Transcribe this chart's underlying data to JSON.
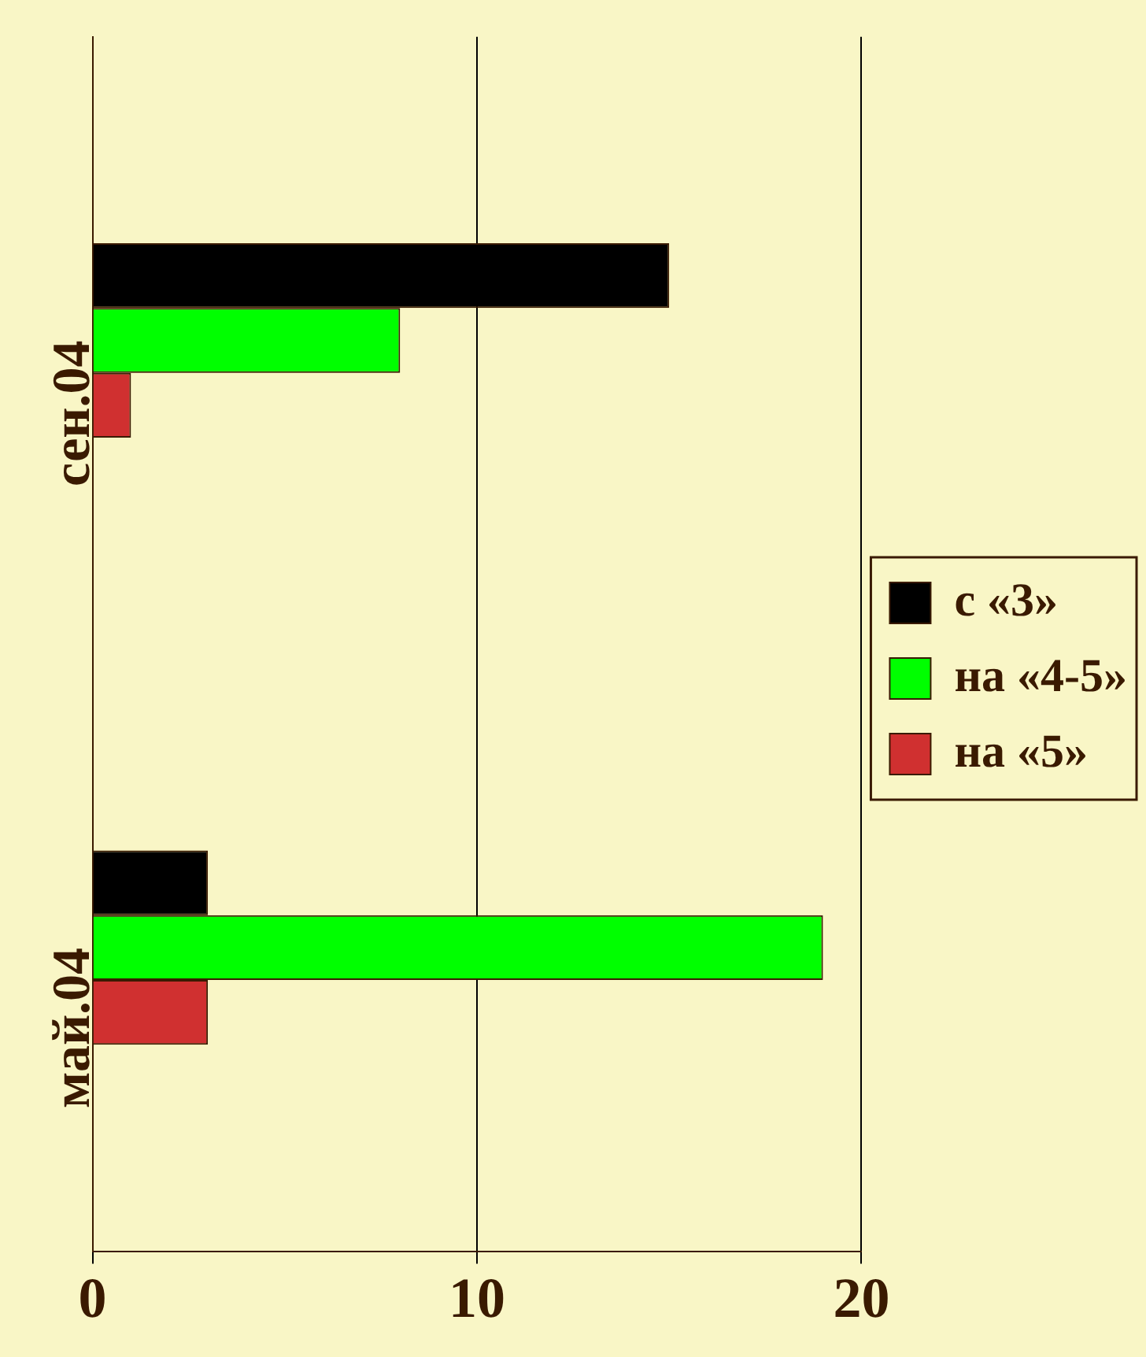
{
  "chart_data": {
    "type": "bar",
    "orientation": "horizontal",
    "categories": [
      "сен.04",
      "май.04"
    ],
    "series": [
      {
        "name": "с «3»",
        "color": "#000000",
        "values": [
          15,
          3
        ]
      },
      {
        "name": "на «4-5»",
        "color": "#00ff00",
        "values": [
          8,
          19
        ]
      },
      {
        "name": "на «5»",
        "color": "#d03030",
        "values": [
          1,
          3
        ]
      }
    ],
    "xlim": [
      0,
      20
    ],
    "xticks": [
      0,
      10,
      20
    ],
    "grid": "x",
    "legend": "right"
  }
}
